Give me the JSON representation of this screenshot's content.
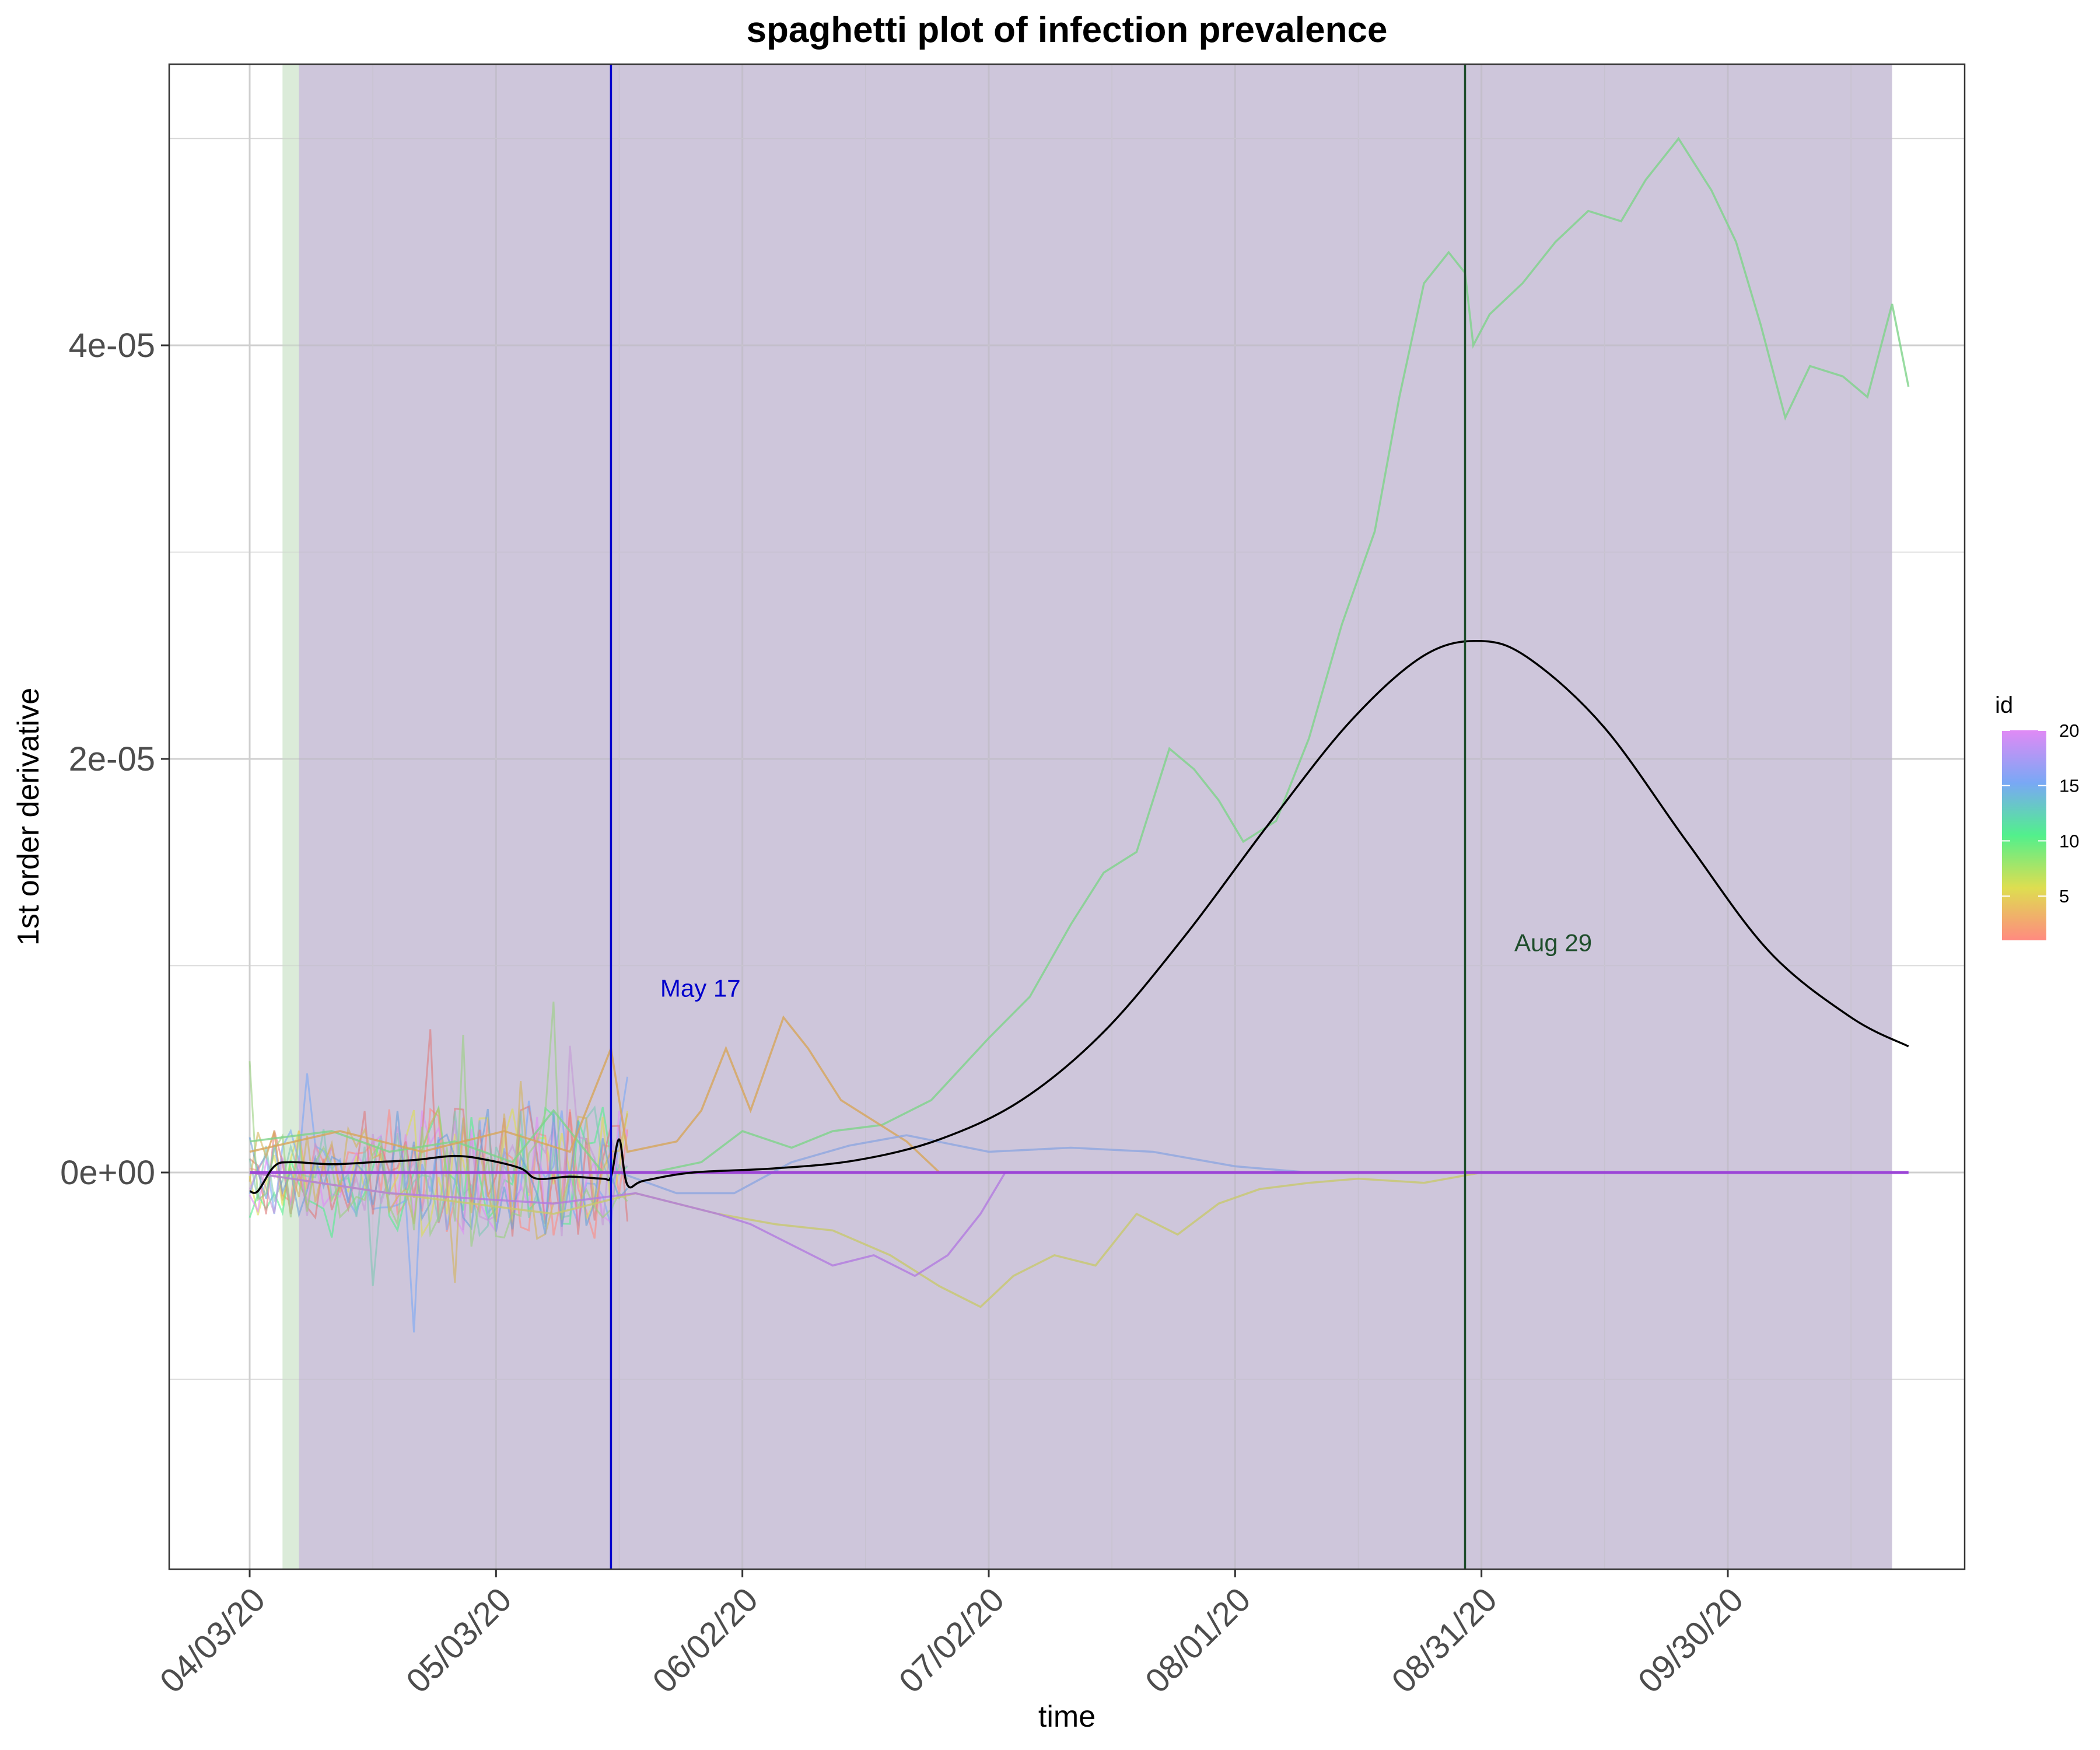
{
  "chart_data": {
    "type": "line",
    "title": "spaghetti plot of infection prevalence",
    "xlabel": "time",
    "ylabel": "1st order derivative",
    "x_range": [
      "04/03/20",
      "10/22/20"
    ],
    "ylim": [
      -9.5e-06,
      5.35e-05
    ],
    "x_ticks": [
      "04/03/20",
      "05/03/20",
      "06/02/20",
      "07/02/20",
      "08/01/20",
      "08/31/20",
      "09/30/20"
    ],
    "y_ticks": [
      {
        "value": 0,
        "label": "0e+00"
      },
      {
        "value": 2e-05,
        "label": "2e-05"
      },
      {
        "value": 4e-05,
        "label": "4e-05"
      }
    ],
    "grid": true,
    "shaded_regions": [
      {
        "start": "04/07/20",
        "end": "04/09/20",
        "color": "#c8e0c4"
      },
      {
        "start": "04/09/20",
        "end": "10/20/20",
        "color": "#b4a7c8"
      }
    ],
    "vlines": [
      {
        "date": "05/17/20",
        "label": "May 17",
        "color": "#0000cc",
        "label_date": "05/23/20",
        "label_value": 8.5e-06
      },
      {
        "date": "08/29/20",
        "label": "Aug 29",
        "color": "#1e4d2b",
        "label_date": "09/04/20",
        "label_value": 1.07e-05
      }
    ],
    "legend": {
      "title": "id",
      "placement": "right",
      "type": "colorbar",
      "range": [
        1,
        20
      ],
      "ticks": [
        "5",
        "10",
        "15",
        "20"
      ],
      "colors": [
        "#ff8a80",
        "#dede50",
        "#52f08c",
        "#79a8f5",
        "#e08af5"
      ]
    },
    "mean_curve": {
      "name": "mean",
      "color": "#000000",
      "points": [
        [
          "04/03/20",
          -9e-07
        ],
        [
          "04/04/20",
          -9e-07
        ],
        [
          "04/06/20",
          3e-07
        ],
        [
          "04/08/20",
          5e-07
        ],
        [
          "04/13/20",
          4e-07
        ],
        [
          "04/18/20",
          5e-07
        ],
        [
          "04/23/20",
          6e-07
        ],
        [
          "04/28/20",
          8e-07
        ],
        [
          "05/02/20",
          6e-07
        ],
        [
          "05/06/20",
          2e-07
        ],
        [
          "05/08/20",
          -3e-07
        ],
        [
          "05/12/20",
          -2e-07
        ],
        [
          "05/16/20",
          -3e-07
        ],
        [
          "05/17/20",
          -2e-07
        ],
        [
          "05/18/20",
          1.6e-06
        ],
        [
          "05/19/20",
          -6e-07
        ],
        [
          "05/21/20",
          -4e-07
        ],
        [
          "05/27/20",
          0.0
        ],
        [
          "06/06/20",
          2e-07
        ],
        [
          "06/16/20",
          6e-07
        ],
        [
          "06/26/20",
          1.6e-06
        ],
        [
          "07/06/20",
          3.5e-06
        ],
        [
          "07/16/20",
          6.8e-06
        ],
        [
          "07/26/20",
          1.15e-05
        ],
        [
          "08/05/20",
          1.68e-05
        ],
        [
          "08/15/20",
          2.18e-05
        ],
        [
          "08/24/20",
          2.5e-05
        ],
        [
          "08/31/20",
          2.57e-05
        ],
        [
          "09/06/20",
          2.48e-05
        ],
        [
          "09/15/20",
          2.15e-05
        ],
        [
          "09/25/20",
          1.6e-05
        ],
        [
          "10/05/20",
          1.07e-05
        ],
        [
          "10/15/20",
          7.5e-06
        ],
        [
          "10/22/20",
          6.1e-06
        ]
      ]
    },
    "series": [
      {
        "name": "green",
        "id": 10,
        "color": "#7ed38a",
        "points": [
          [
            "04/03/20",
            1.5e-06
          ],
          [
            "04/13/20",
            2e-06
          ],
          [
            "04/20/20",
            1e-06
          ],
          [
            "04/28/20",
            1.5e-06
          ],
          [
            "05/05/20",
            5e-07
          ],
          [
            "05/10/20",
            3e-06
          ],
          [
            "05/16/20",
            0.0
          ],
          [
            "05/22/20",
            0.0
          ],
          [
            "05/28/20",
            5e-07
          ],
          [
            "06/02/20",
            2e-06
          ],
          [
            "06/08/20",
            1.2e-06
          ],
          [
            "06/13/20",
            2e-06
          ],
          [
            "06/19/20",
            2.3e-06
          ],
          [
            "06/25/20",
            3.5e-06
          ],
          [
            "07/02/20",
            6.5e-06
          ],
          [
            "07/07/20",
            8.5e-06
          ],
          [
            "07/12/20",
            1.2e-05
          ],
          [
            "07/16/20",
            1.45e-05
          ],
          [
            "07/20/20",
            1.55e-05
          ],
          [
            "07/24/20",
            2.05e-05
          ],
          [
            "07/27/20",
            1.95e-05
          ],
          [
            "07/30/20",
            1.8e-05
          ],
          [
            "08/02/20",
            1.6e-05
          ],
          [
            "08/06/20",
            1.7e-05
          ],
          [
            "08/10/20",
            2.1e-05
          ],
          [
            "08/14/20",
            2.65e-05
          ],
          [
            "08/18/20",
            3.1e-05
          ],
          [
            "08/21/20",
            3.75e-05
          ],
          [
            "08/24/20",
            4.3e-05
          ],
          [
            "08/27/20",
            4.45e-05
          ],
          [
            "08/29/20",
            4.35e-05
          ],
          [
            "08/30/20",
            4e-05
          ],
          [
            "09/01/20",
            4.15e-05
          ],
          [
            "09/05/20",
            4.3e-05
          ],
          [
            "09/09/20",
            4.5e-05
          ],
          [
            "09/13/20",
            4.65e-05
          ],
          [
            "09/17/20",
            4.6e-05
          ],
          [
            "09/20/20",
            4.8e-05
          ],
          [
            "09/24/20",
            5e-05
          ],
          [
            "09/28/20",
            4.75e-05
          ],
          [
            "10/01/20",
            4.5e-05
          ],
          [
            "10/04/20",
            4.1e-05
          ],
          [
            "10/07/20",
            3.65e-05
          ],
          [
            "10/10/20",
            3.9e-05
          ],
          [
            "10/14/20",
            3.85e-05
          ],
          [
            "10/17/20",
            3.75e-05
          ],
          [
            "10/20/20",
            4.2e-05
          ],
          [
            "10/22/20",
            3.8e-05
          ]
        ]
      },
      {
        "name": "orange",
        "id": 4,
        "color": "#d7a55a",
        "points": [
          [
            "04/03/20",
            1e-06
          ],
          [
            "04/14/20",
            2e-06
          ],
          [
            "04/24/20",
            1e-06
          ],
          [
            "05/04/20",
            2e-06
          ],
          [
            "05/12/20",
            1e-06
          ],
          [
            "05/17/20",
            6e-06
          ],
          [
            "05/19/20",
            1e-06
          ],
          [
            "05/25/20",
            1.5e-06
          ],
          [
            "05/28/20",
            3e-06
          ],
          [
            "05/31/20",
            6e-06
          ],
          [
            "06/03/20",
            3e-06
          ],
          [
            "06/07/20",
            7.5e-06
          ],
          [
            "06/10/20",
            6e-06
          ],
          [
            "06/14/20",
            3.5e-06
          ],
          [
            "06/18/20",
            2.5e-06
          ],
          [
            "06/22/20",
            1.5e-06
          ],
          [
            "06/26/20",
            0.0
          ],
          [
            "07/02/20",
            0.0
          ]
        ]
      },
      {
        "name": "olive",
        "id": 6,
        "color": "#c8c86e",
        "points": [
          [
            "04/03/20",
            0.0
          ],
          [
            "04/20/20",
            -1e-06
          ],
          [
            "05/10/20",
            -2e-06
          ],
          [
            "05/20/20",
            -1e-06
          ],
          [
            "05/30/20",
            -2e-06
          ],
          [
            "06/06/20",
            -2.5e-06
          ],
          [
            "06/13/20",
            -2.8e-06
          ],
          [
            "06/20/20",
            -4e-06
          ],
          [
            "06/26/20",
            -5.5e-06
          ],
          [
            "07/01/20",
            -6.5e-06
          ],
          [
            "07/05/20",
            -5e-06
          ],
          [
            "07/10/20",
            -4e-06
          ],
          [
            "07/15/20",
            -4.5e-06
          ],
          [
            "07/20/20",
            -2e-06
          ],
          [
            "07/25/20",
            -3e-06
          ],
          [
            "07/30/20",
            -1.5e-06
          ],
          [
            "08/04/20",
            -8e-07
          ],
          [
            "08/10/20",
            -5e-07
          ],
          [
            "08/16/20",
            -3e-07
          ],
          [
            "08/24/20",
            -5e-07
          ],
          [
            "08/31/20",
            0.0
          ],
          [
            "09/03/20",
            0.0
          ]
        ]
      },
      {
        "name": "purple",
        "id": 18,
        "color": "#b37ae0",
        "points": [
          [
            "04/03/20",
            0.0
          ],
          [
            "04/20/20",
            -1e-06
          ],
          [
            "05/10/20",
            -1.5e-06
          ],
          [
            "05/20/20",
            -1e-06
          ],
          [
            "05/30/20",
            -2e-06
          ],
          [
            "06/03/20",
            -2.5e-06
          ],
          [
            "06/08/20",
            -3.5e-06
          ],
          [
            "06/13/20",
            -4.5e-06
          ],
          [
            "06/18/20",
            -4e-06
          ],
          [
            "06/23/20",
            -5e-06
          ],
          [
            "06/27/20",
            -4e-06
          ],
          [
            "07/01/20",
            -2e-06
          ],
          [
            "07/04/20",
            0.0
          ],
          [
            "10/22/20",
            0.0
          ]
        ]
      },
      {
        "name": "blue",
        "id": 15,
        "color": "#8ea6e0",
        "points": [
          [
            "04/03/20",
            0.0
          ],
          [
            "05/18/20",
            0.0
          ],
          [
            "05/25/20",
            -1e-06
          ],
          [
            "06/01/20",
            -1e-06
          ],
          [
            "06/08/20",
            5e-07
          ],
          [
            "06/15/20",
            1.3e-06
          ],
          [
            "06/22/20",
            1.8e-06
          ],
          [
            "07/02/20",
            1e-06
          ],
          [
            "07/12/20",
            1.2e-06
          ],
          [
            "07/22/20",
            1e-06
          ],
          [
            "08/01/20",
            3e-07
          ],
          [
            "08/10/20",
            0.0
          ],
          [
            "10/22/20",
            0.0
          ]
        ]
      },
      {
        "name": "violet",
        "id": 20,
        "color": "#9b40d6",
        "points": [
          [
            "04/03/20",
            0.0
          ],
          [
            "10/22/20",
            0.0
          ]
        ]
      }
    ]
  }
}
